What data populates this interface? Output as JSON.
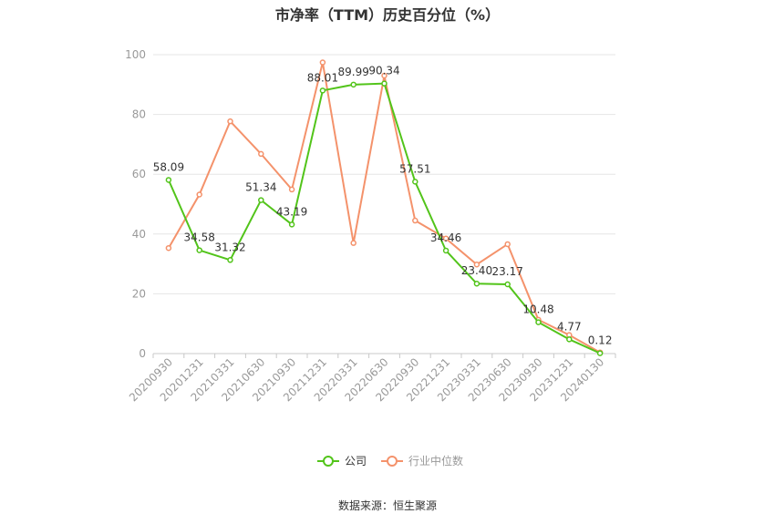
{
  "chart_data": {
    "type": "line",
    "title": "市净率（TTM）历史百分位（%）",
    "categories": [
      "20200930",
      "20201231",
      "20210331",
      "20210630",
      "20210930",
      "20211231",
      "20220331",
      "20220630",
      "20220930",
      "20221231",
      "20230331",
      "20230630",
      "20230930",
      "20231231",
      "20240130"
    ],
    "series": [
      {
        "name": "公司",
        "color": "#52c41a",
        "values": [
          58.09,
          34.58,
          31.32,
          51.34,
          43.19,
          88.01,
          89.99,
          90.34,
          57.51,
          34.46,
          23.4,
          23.17,
          10.48,
          4.77,
          0.12
        ],
        "labels": [
          "58.09",
          "34.58",
          "31.32",
          "51.34",
          "43.19",
          "88.01",
          "89.99",
          "90.34",
          "57.51",
          "34.46",
          "23.40",
          "23.17",
          "10.48",
          "4.77",
          "0.12"
        ]
      },
      {
        "name": "行业中位数",
        "color": "#f4926b",
        "values": [
          35.3,
          53.2,
          77.7,
          66.8,
          54.9,
          97.4,
          37.0,
          93.0,
          44.5,
          38.5,
          29.8,
          36.6,
          11.3,
          6.2,
          0.4
        ]
      }
    ],
    "yticks": [
      0,
      20,
      40,
      60,
      80,
      100
    ],
    "ylim": [
      0,
      100
    ],
    "grid": true,
    "legend_position": "bottom"
  },
  "source": "数据来源：恒生聚源"
}
